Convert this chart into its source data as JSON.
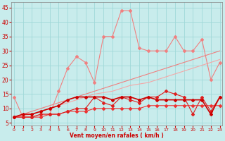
{
  "bg_color": "#c8ecec",
  "grid_color": "#a0d8d8",
  "x_values": [
    0,
    1,
    2,
    3,
    4,
    5,
    6,
    7,
    8,
    9,
    10,
    11,
    12,
    13,
    14,
    15,
    16,
    17,
    18,
    19,
    20,
    21,
    22,
    23
  ],
  "line_volatile_y": [
    14,
    7,
    7,
    8,
    8,
    16,
    24,
    28,
    26,
    19,
    35,
    35,
    44,
    44,
    31,
    30,
    30,
    30,
    35,
    30,
    30,
    34,
    20,
    26
  ],
  "line_volatile_color": "#f08080",
  "line_reg1_y": [
    7,
    8,
    9,
    10,
    11,
    12,
    13,
    14,
    15,
    16,
    17,
    18,
    19,
    20,
    21,
    22,
    23,
    24,
    25,
    26,
    27,
    28,
    29,
    30
  ],
  "line_reg1_color": "#f08080",
  "line_reg2_y": [
    7,
    7.5,
    8,
    9,
    10,
    11,
    12,
    13,
    14,
    15,
    15.5,
    16,
    17,
    18,
    18.5,
    19,
    20,
    21,
    22,
    23,
    24,
    25,
    26,
    27
  ],
  "line_reg2_color": "#f4a8a8",
  "line_flat1_y": [
    7,
    7,
    7,
    7,
    8,
    8,
    9,
    9,
    9,
    10,
    10,
    10,
    10,
    10,
    10,
    11,
    11,
    11,
    11,
    11,
    11,
    11,
    11,
    11
  ],
  "line_flat1_color": "#ee3333",
  "line_flat2_y": [
    7,
    8,
    8,
    9,
    10,
    11,
    13,
    14,
    14,
    14,
    14,
    13,
    14,
    14,
    13,
    14,
    13,
    13,
    13,
    13,
    13,
    13,
    8,
    14
  ],
  "line_flat2_color": "#cc0000",
  "line_jagged_y": [
    7,
    7,
    7,
    8,
    8,
    8,
    9,
    10,
    10,
    14,
    12,
    11,
    14,
    13,
    12,
    14,
    14,
    16,
    15,
    14,
    8,
    14,
    9,
    14
  ],
  "line_jagged_color": "#dd2020",
  "xlabel": "Vent moyen/en rafales ( km/h )",
  "xlabel_color": "#cc0000",
  "ylabel_ticks": [
    5,
    10,
    15,
    20,
    25,
    30,
    35,
    40,
    45
  ],
  "xlim": [
    -0.3,
    23.3
  ],
  "ylim": [
    4,
    47
  ]
}
